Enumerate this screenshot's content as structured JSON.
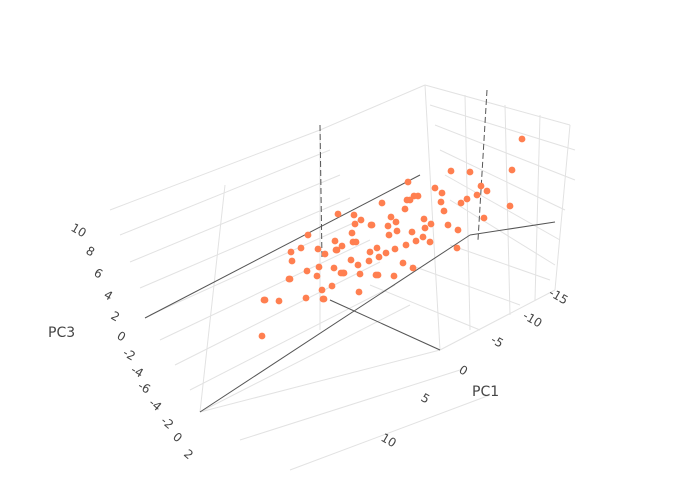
{
  "chart_data": {
    "type": "scatter3d",
    "title": "",
    "marker_color": "#ff7f50",
    "grid": true,
    "axes": {
      "x": {
        "label": "PC1",
        "ticks": [
          "-15",
          "-10",
          "-5",
          "0",
          "5",
          "10"
        ],
        "range": [
          -17,
          12
        ]
      },
      "y": {
        "label": "",
        "ticks": [
          "-4",
          "-2",
          "0",
          "2"
        ],
        "range": [
          -5,
          5
        ]
      },
      "z": {
        "label": "PC3",
        "ticks": [
          "-6",
          "-4",
          "-2",
          "0",
          "2",
          "4",
          "6",
          "8",
          "10"
        ],
        "range": [
          -7,
          11
        ]
      }
    },
    "points": [
      [
        -14,
        2,
        4
      ],
      [
        -12,
        -1,
        3
      ],
      [
        -11,
        1,
        2
      ],
      [
        -10,
        3,
        1
      ],
      [
        -9,
        -2,
        2
      ],
      [
        -9,
        0,
        5
      ],
      [
        -8,
        2,
        0
      ],
      [
        -8,
        -3,
        1
      ],
      [
        -7,
        1,
        3
      ],
      [
        -7,
        -1,
        -1
      ],
      [
        -6,
        3,
        2
      ],
      [
        -6,
        0,
        1
      ],
      [
        -6,
        -2,
        4
      ],
      [
        -5,
        1,
        0
      ],
      [
        -5,
        2,
        2
      ],
      [
        -5,
        -1,
        3
      ],
      [
        -4,
        0,
        -1
      ],
      [
        -4,
        3,
        1
      ],
      [
        -4,
        -3,
        2
      ],
      [
        -3,
        1,
        4
      ],
      [
        -3,
        -1,
        0
      ],
      [
        -3,
        2,
        -2
      ],
      [
        -2,
        0,
        2
      ],
      [
        -2,
        -2,
        1
      ],
      [
        -2,
        1,
        3
      ],
      [
        -1,
        3,
        0
      ],
      [
        -1,
        -1,
        2
      ],
      [
        -1,
        0,
        -1
      ],
      [
        0,
        2,
        1
      ],
      [
        0,
        -2,
        3
      ],
      [
        0,
        1,
        -2
      ],
      [
        0,
        0,
        0
      ],
      [
        1,
        -1,
        1
      ],
      [
        1,
        2,
        2
      ],
      [
        1,
        -3,
        -1
      ],
      [
        2,
        0,
        3
      ],
      [
        2,
        1,
        -1
      ],
      [
        2,
        -2,
        0
      ],
      [
        3,
        1,
        1
      ],
      [
        3,
        -1,
        2
      ],
      [
        3,
        2,
        -2
      ],
      [
        4,
        0,
        0
      ],
      [
        4,
        -2,
        1
      ],
      [
        4,
        1,
        3
      ],
      [
        5,
        -1,
        -1
      ],
      [
        5,
        2,
        1
      ],
      [
        5,
        0,
        2
      ],
      [
        6,
        -3,
        0
      ],
      [
        6,
        1,
        -2
      ],
      [
        7,
        0,
        1
      ],
      [
        7,
        -2,
        2
      ],
      [
        8,
        1,
        -1
      ],
      [
        8,
        -1,
        0
      ],
      [
        9,
        0,
        1
      ],
      [
        10,
        -2,
        -2
      ],
      [
        11,
        1,
        0
      ],
      [
        -13,
        0,
        1
      ],
      [
        -10,
        -2,
        -1
      ],
      [
        -8,
        0,
        3
      ],
      [
        -7,
        3,
        -1
      ],
      [
        -5,
        -3,
        0
      ],
      [
        -4,
        1,
        5
      ],
      [
        -2,
        3,
        3
      ],
      [
        -1,
        -3,
        1
      ],
      [
        0,
        3,
        -1
      ],
      [
        1,
        0,
        4
      ],
      [
        2,
        3,
        0
      ],
      [
        3,
        -3,
        -2
      ],
      [
        4,
        3,
        2
      ],
      [
        5,
        -3,
        1
      ],
      [
        6,
        2,
        0
      ],
      [
        7,
        2,
        -1
      ],
      [
        -11,
        -1,
        0
      ],
      [
        -9,
        2,
        3
      ],
      [
        -6,
        -1,
        -2
      ],
      [
        -3,
        0,
        1
      ],
      [
        -1,
        2,
        1
      ],
      [
        1,
        1,
        0
      ],
      [
        2,
        -1,
        -2
      ],
      [
        3,
        0,
        -1
      ],
      [
        -16,
        1,
        6
      ],
      [
        -15,
        -3,
        -1
      ],
      [
        9,
        -3,
        -3
      ],
      [
        12,
        0,
        -4
      ],
      [
        -12,
        4,
        2
      ],
      [
        6,
        -1,
        4
      ],
      [
        -2,
        -4,
        -2
      ],
      [
        8,
        3,
        1
      ],
      [
        -8,
        -4,
        0
      ],
      [
        0,
        -4,
        2
      ]
    ]
  }
}
